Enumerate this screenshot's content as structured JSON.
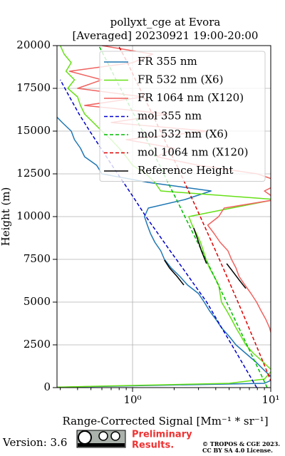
{
  "chart_data": {
    "type": "line",
    "title": [
      "pollyxt_cge at Evora",
      "[Averaged] 20230921 19:00-20:00"
    ],
    "xlabel": "Range-Corrected Signal [Mm⁻¹ * sr⁻¹]",
    "ylabel": "Height (m)",
    "xscale": "log",
    "xlim": [
      0.284,
      10
    ],
    "xticks": [
      {
        "value": 1,
        "label": "10⁰"
      },
      {
        "value": 10,
        "label": "10¹"
      }
    ],
    "xminorticks": [
      0.3,
      0.4,
      0.5,
      0.6,
      0.7,
      0.8,
      0.9,
      2,
      3,
      4,
      5,
      6,
      7,
      8,
      9
    ],
    "ylim": [
      0,
      20000
    ],
    "yticks": [
      0,
      2500,
      5000,
      7500,
      10000,
      12500,
      15000,
      17500,
      20000
    ],
    "grid": true,
    "legend": "upper right",
    "series": [
      {
        "name": "FR 355 nm",
        "color": "#1f77b4",
        "linestyle": "solid",
        "heights": [
          0,
          250,
          500,
          1000,
          1500,
          2000,
          2500,
          3000,
          3500,
          4000,
          4500,
          5000,
          5500,
          6000,
          6500,
          7000,
          7500,
          8000,
          8500,
          9000,
          9500,
          10000,
          10500,
          11000,
          11500,
          12000,
          12500,
          13000,
          13500,
          14000,
          14500,
          15000,
          15500,
          16000,
          16500
        ],
        "values": [
          0.2,
          9.0,
          10.5,
          9.0,
          7.8,
          6.6,
          5.6,
          5.0,
          4.4,
          4.0,
          3.6,
          3.3,
          3.0,
          2.5,
          2.2,
          1.9,
          1.7,
          1.6,
          1.45,
          1.35,
          1.28,
          1.22,
          1.3,
          2.4,
          3.7,
          1.3,
          0.6,
          0.55,
          0.45,
          0.42,
          0.38,
          0.36,
          0.31,
          0.27,
          0.25
        ]
      },
      {
        "name": "FR 532 nm (X6)",
        "color": "#66e016",
        "linestyle": "solid",
        "heights": [
          0,
          250,
          500,
          1000,
          1500,
          2000,
          2500,
          3000,
          3500,
          4000,
          4500,
          5000,
          5500,
          6000,
          6500,
          7000,
          7500,
          8000,
          8500,
          9000,
          9500,
          10000,
          10500,
          11000,
          11500,
          12000,
          12500,
          13000,
          13500,
          14000,
          14500,
          15000,
          15500,
          16000,
          16500,
          17000,
          17500,
          18000,
          18500,
          19000,
          19500,
          20000
        ],
        "values": [
          0.2,
          5,
          9,
          10.2,
          8.8,
          7.5,
          6.6,
          6.1,
          5.6,
          5.2,
          4.8,
          4.4,
          4.3,
          4.2,
          3.9,
          3.6,
          3.4,
          3.25,
          3.1,
          2.9,
          2.7,
          2.55,
          5.2,
          10.8,
          1.6,
          1.45,
          1.25,
          1.0,
          0.9,
          0.8,
          0.7,
          0.6,
          0.52,
          0.45,
          0.42,
          0.4,
          0.34,
          0.38,
          0.33,
          0.36,
          0.32,
          0.3
        ]
      },
      {
        "name": "FR 1064 nm (X120)",
        "color": "#f0625f",
        "linestyle": "solid",
        "heights": [
          1000,
          1500,
          2000,
          2500,
          3000,
          3500,
          4000,
          4500,
          5000,
          5500,
          6000,
          6500,
          7000,
          7500,
          8000,
          8500,
          9000,
          9500,
          10000,
          10500,
          11000,
          11500,
          12000,
          12500,
          13000,
          13500,
          14000,
          14500,
          15000,
          15500,
          16000,
          16500,
          17000,
          17500,
          18000,
          18500,
          19000,
          19500,
          20000
        ],
        "values": [
          14,
          12,
          11,
          10.8,
          10.2,
          9.8,
          9.2,
          8.5,
          7.9,
          7.2,
          6.5,
          5.9,
          5.6,
          5.2,
          4.9,
          4.3,
          3.9,
          3.5,
          4.2,
          4.6,
          11,
          9,
          12,
          8,
          3.0,
          1.5,
          2.0,
          0.9,
          3.5,
          0.7,
          1.8,
          0.45,
          1.2,
          0.4,
          0.6,
          0.35,
          1.0,
          1.4,
          0.6
        ]
      },
      {
        "name": "mol 355 nm",
        "color": "#0000cc",
        "linestyle": "dashed",
        "heights": [
          0,
          1000,
          2000,
          3000,
          4000,
          5000,
          6000,
          7000,
          8000,
          9000,
          10000,
          11000,
          12000,
          13000,
          14000,
          15000,
          16000,
          17000,
          18000
        ],
        "values": [
          7.91,
          6.7,
          5.68,
          4.8,
          4.06,
          3.44,
          2.81,
          2.3,
          1.87,
          1.53,
          1.25,
          1.04,
          0.86,
          0.71,
          0.59,
          0.49,
          0.41,
          0.35,
          0.3
        ]
      },
      {
        "name": "mol 532 nm (X6)",
        "color": "#00bb00",
        "linestyle": "dashed",
        "heights": [
          0,
          1000,
          2000,
          3000,
          4000,
          5000,
          6000,
          7000,
          8000,
          9000,
          10000,
          11000,
          12000,
          13000,
          14000,
          15000,
          16000,
          17000,
          18000,
          19000,
          20000
        ],
        "values": [
          9.42,
          8.24,
          7.19,
          6.29,
          5.49,
          4.79,
          4.17,
          3.64,
          3.17,
          2.75,
          2.39,
          2.08,
          1.8,
          1.57,
          1.36,
          1.18,
          1.02,
          0.88,
          0.76,
          0.66,
          0.57
        ]
      },
      {
        "name": "mol 1064 nm (X120)",
        "color": "#dd0000",
        "linestyle": "dashed",
        "heights": [
          0,
          1000,
          2000,
          3000,
          4000,
          5000,
          6000,
          7000,
          8000,
          9000,
          10000,
          11000,
          12000,
          13000,
          14000,
          15000,
          16000,
          17000,
          18000,
          19000,
          20000
        ],
        "values": [
          10.47,
          9.33,
          8.3,
          7.37,
          6.54,
          5.79,
          5.12,
          4.52,
          3.99,
          3.51,
          3.09,
          2.71,
          2.38,
          2.09,
          1.82,
          1.59,
          1.39,
          1.21,
          1.05,
          0.92,
          0.79
        ]
      },
      {
        "name": "Reference Height",
        "color": "#000000",
        "linestyle": "solid",
        "heights": [
          6000,
          6500,
          7000,
          7460,
          null,
          7250,
          8000,
          8700,
          9333,
          null,
          5800,
          6300,
          6800,
          7250
        ],
        "values": [
          2.35,
          2.1,
          1.85,
          1.7,
          null,
          3.43,
          3.15,
          2.95,
          2.77,
          null,
          6.6,
          5.9,
          5.3,
          4.8
        ]
      }
    ]
  },
  "footer": {
    "version": "Version: 3.6",
    "preliminary": [
      "Preliminary",
      "Results."
    ],
    "copyright": [
      "© TROPOS & CGE 2023.",
      "CC BY SA 4.0 License."
    ]
  }
}
